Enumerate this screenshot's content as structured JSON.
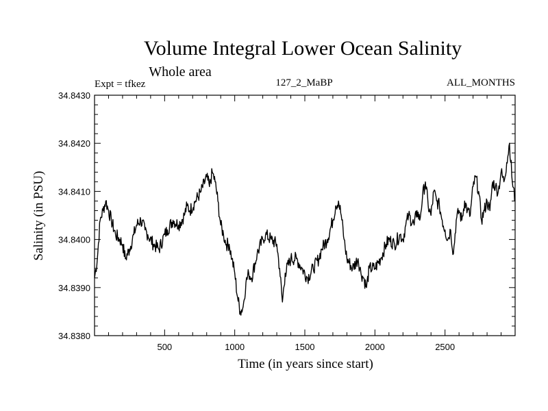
{
  "chart_data": {
    "type": "line",
    "title": "Volume Integral Lower Ocean Salinity",
    "subtitle": "Whole area",
    "annotations": {
      "experiment": "Expt = tfkez",
      "period": "127_2_MaBP",
      "months": "ALL_MONTHS"
    },
    "xlabel": "Time (in years since start)",
    "ylabel": "Salinity (in PSU)",
    "xlim": [
      0,
      3000
    ],
    "ylim": [
      34.838,
      34.843
    ],
    "x_ticks": [
      500,
      1000,
      1500,
      2000,
      2500
    ],
    "x_tick_labels": [
      "500",
      "1000",
      "1500",
      "2000",
      "2500"
    ],
    "y_ticks": [
      34.838,
      34.839,
      34.84,
      34.841,
      34.842,
      34.843
    ],
    "y_tick_labels": [
      "34.8380",
      "34.8390",
      "34.8400",
      "34.8410",
      "34.8420",
      "34.8430"
    ],
    "grid": false,
    "legend": "none",
    "color": "#000000",
    "series": [
      {
        "x": [
          0,
          20,
          40,
          60,
          80,
          100,
          120,
          150,
          180,
          200,
          220,
          250,
          280,
          300,
          330,
          360,
          380,
          420,
          460,
          500,
          520,
          560,
          600,
          640,
          660,
          680,
          720,
          760,
          800,
          820,
          840,
          860,
          880,
          900,
          920,
          940,
          960,
          980,
          1000,
          1020,
          1040,
          1060,
          1080,
          1100,
          1120,
          1160,
          1200,
          1220,
          1260,
          1300,
          1320,
          1340,
          1360,
          1400,
          1440,
          1480,
          1520,
          1560,
          1600,
          1620,
          1660,
          1700,
          1720,
          1740,
          1760,
          1780,
          1800,
          1840,
          1880,
          1900,
          1920,
          1940,
          1960,
          2000,
          2040,
          2080,
          2100,
          2140,
          2180,
          2200,
          2220,
          2240,
          2280,
          2300,
          2320,
          2340,
          2360,
          2380,
          2400,
          2420,
          2440,
          2460,
          2480,
          2500,
          2520,
          2540,
          2560,
          2580,
          2600,
          2620,
          2640,
          2660,
          2680,
          2700,
          2720,
          2740,
          2760,
          2780,
          2800,
          2820,
          2840,
          2860,
          2880,
          2900,
          2920,
          2940,
          2960,
          2980,
          3000
        ],
        "y": [
          34.8392,
          34.8396,
          34.8404,
          34.8406,
          34.8408,
          34.8406,
          34.8404,
          34.8401,
          34.84,
          34.8399,
          34.8396,
          34.8398,
          34.8401,
          34.8403,
          34.8404,
          34.8402,
          34.8401,
          34.8399,
          34.8398,
          34.8401,
          34.8402,
          34.8404,
          34.8403,
          34.8405,
          34.8407,
          34.8406,
          34.8408,
          34.841,
          34.8413,
          34.8411,
          34.8414,
          34.8412,
          34.8408,
          34.8403,
          34.8401,
          34.8399,
          34.8399,
          34.8396,
          34.8393,
          34.8388,
          34.8385,
          34.8386,
          34.8391,
          34.8393,
          34.8392,
          34.8397,
          34.84,
          34.8401,
          34.84,
          34.8399,
          34.8394,
          34.8387,
          34.8393,
          34.8396,
          34.8396,
          34.8394,
          34.8392,
          34.8394,
          34.8396,
          34.8398,
          34.84,
          34.8404,
          34.8407,
          34.8408,
          34.8405,
          34.84,
          34.8396,
          34.8394,
          34.8396,
          34.8393,
          34.8392,
          34.839,
          34.8394,
          34.8394,
          34.8396,
          34.8399,
          34.84,
          34.8399,
          34.8401,
          34.84,
          34.8403,
          34.8405,
          34.8403,
          34.8406,
          34.8404,
          34.8409,
          34.8412,
          34.8407,
          34.8405,
          34.841,
          34.8408,
          34.8407,
          34.8404,
          34.8402,
          34.84,
          34.8402,
          34.8397,
          34.8404,
          34.8406,
          34.8404,
          34.8408,
          34.8406,
          34.8405,
          34.8411,
          34.8413,
          34.841,
          34.8404,
          34.8406,
          34.8408,
          34.8406,
          34.8412,
          34.8411,
          34.841,
          34.8414,
          34.8412,
          34.8416,
          34.842,
          34.8412,
          34.8408
        ]
      }
    ]
  }
}
